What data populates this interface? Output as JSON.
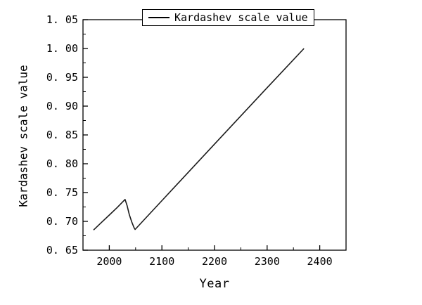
{
  "chart_data": {
    "type": "line",
    "title": "",
    "xlabel": "Year",
    "ylabel": "Kardashev scale value",
    "xlim": [
      1950,
      2450
    ],
    "ylim": [
      0.65,
      1.05
    ],
    "xticks": [
      2000,
      2100,
      2200,
      2300,
      2400
    ],
    "yticks": [
      0.65,
      0.7,
      0.75,
      0.8,
      0.85,
      0.9,
      0.95,
      1.0,
      1.05
    ],
    "x_minor_step": 50,
    "y_minor_step": 0.025,
    "grid": false,
    "legend_position": "top-center",
    "line_color": "#1a1a1a",
    "series": [
      {
        "name": "Kardashev scale value",
        "points": [
          [
            1970,
            0.685
          ],
          [
            1985,
            0.698
          ],
          [
            2000,
            0.711
          ],
          [
            2015,
            0.724
          ],
          [
            2030,
            0.738
          ],
          [
            2034,
            0.727
          ],
          [
            2038,
            0.712
          ],
          [
            2043,
            0.698
          ],
          [
            2047,
            0.689
          ],
          [
            2049,
            0.686
          ],
          [
            2100,
            0.736
          ],
          [
            2200,
            0.834
          ],
          [
            2300,
            0.932
          ],
          [
            2370,
            1.0
          ]
        ]
      }
    ]
  },
  "legend": {
    "label": "Kardashev scale value"
  },
  "labels": {
    "xlabel": "Year",
    "ylabel": "Kardashev scale value"
  }
}
